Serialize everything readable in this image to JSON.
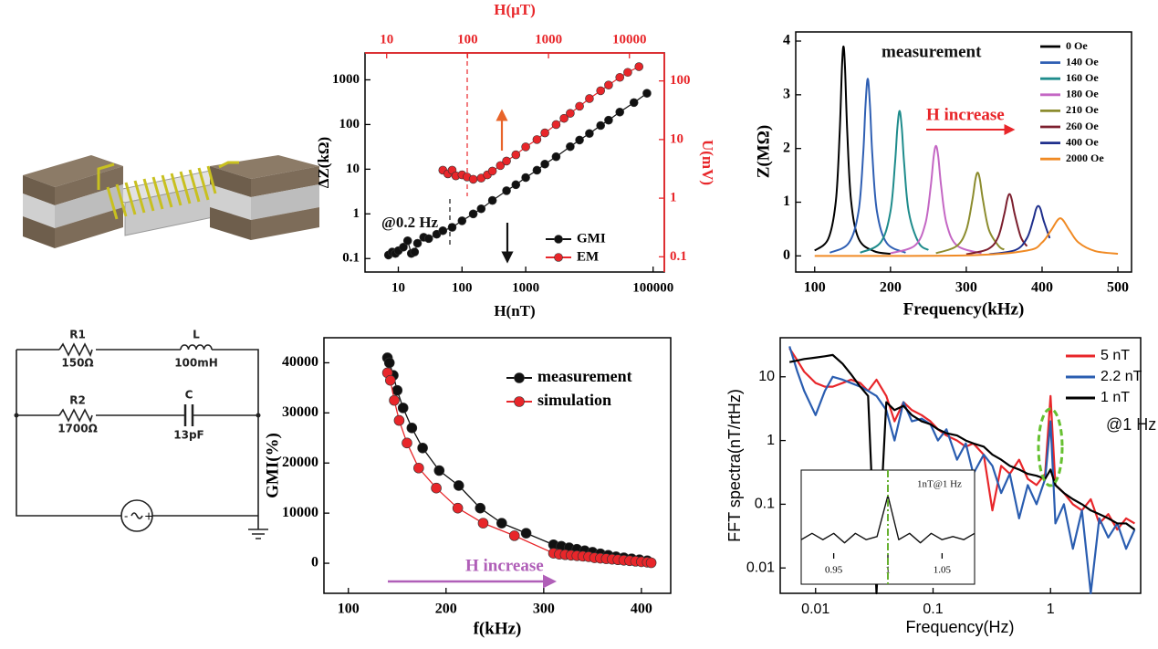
{
  "chart_data": [
    {
      "type": "line",
      "marker": "circle",
      "xscale": "log",
      "yscale": "log",
      "x2scale": "log",
      "y2scale": "log",
      "xlabel": "H(nT)",
      "ylabel": "ΔZ(kΩ)",
      "x2label": "H(μT)",
      "y2label": "U(mV)",
      "secondary_color": "#e8262a",
      "xlim": [
        3,
        150000
      ],
      "xticks": [
        10,
        100,
        1000,
        100000
      ],
      "x2lim": [
        5.4,
        27000
      ],
      "x2ticks": [
        10,
        100,
        1000,
        10000
      ],
      "ylim": [
        0.05,
        4000
      ],
      "yticks": [
        0.1,
        1,
        10,
        100,
        1000
      ],
      "y2lim": [
        0.055,
        300
      ],
      "y2ticks": [
        0.1,
        1,
        10,
        100
      ],
      "legend": "lower right",
      "annotations": [
        {
          "text": "@0.2 Hz",
          "color": "#111111"
        }
      ],
      "series": [
        {
          "name": "GMI",
          "color": "#111111",
          "x": [
            7,
            8,
            9,
            10,
            12,
            14,
            16,
            18,
            20,
            25,
            30,
            40,
            50,
            70,
            100,
            150,
            200,
            300,
            500,
            700,
            1000,
            1500,
            2000,
            3000,
            5000,
            7000,
            10000,
            15000,
            20000,
            30000,
            50000,
            80000
          ],
          "values": [
            0.12,
            0.14,
            0.13,
            0.15,
            0.18,
            0.25,
            0.13,
            0.14,
            0.22,
            0.3,
            0.28,
            0.35,
            0.42,
            0.5,
            0.7,
            1.0,
            1.3,
            2,
            3.3,
            4.5,
            6.5,
            9.5,
            13,
            19,
            32,
            45,
            63,
            95,
            125,
            190,
            310,
            500
          ]
        },
        {
          "name": "EM",
          "color": "#e8262a",
          "axis": "y2",
          "x": [
            50,
            60,
            70,
            80,
            100,
            120,
            150,
            200,
            250,
            300,
            400,
            500,
            700,
            1000,
            1500,
            2000,
            3000,
            4000,
            5000,
            7000,
            10000,
            15000,
            20000,
            30000,
            40000,
            60000
          ],
          "values": [
            3,
            2.6,
            3,
            2.4,
            2.5,
            2.3,
            2.1,
            2.2,
            2.5,
            2.9,
            3.6,
            4.3,
            5.5,
            7.5,
            10,
            13,
            18,
            23,
            28,
            37,
            50,
            68,
            85,
            115,
            140,
            175
          ]
        }
      ]
    },
    {
      "type": "line",
      "smooth": true,
      "xlabel": "Frequency(kHz)",
      "ylabel": "Z(MΩ)",
      "xlim": [
        75,
        518
      ],
      "xticks": [
        100,
        200,
        300,
        400,
        500
      ],
      "ylim": [
        -0.3,
        4.17
      ],
      "yticks": [
        0,
        1,
        2,
        3,
        4
      ],
      "legend": "upper right",
      "annotations": [
        {
          "text": "measurement",
          "color": "#111111"
        },
        {
          "text": "H increase",
          "color": "#e8262a"
        }
      ],
      "series": [
        {
          "name": "0 Oe",
          "color": "#000000",
          "x": [
            100,
            118,
            128,
            133,
            136,
            138,
            140,
            143,
            148,
            158,
            178,
            200
          ],
          "values": [
            0.1,
            0.32,
            1.03,
            2.3,
            3.51,
            3.9,
            3.51,
            2.3,
            1.03,
            0.32,
            0.09,
            0.04
          ]
        },
        {
          "name": "140 Oe",
          "color": "#2f5fb3",
          "x": [
            120,
            145,
            158,
            164,
            167,
            170,
            173,
            176,
            182,
            195,
            220
          ],
          "values": [
            0.06,
            0.24,
            0.84,
            1.9,
            2.79,
            3.3,
            2.79,
            1.9,
            0.84,
            0.24,
            0.06
          ]
        },
        {
          "name": "160 Oe",
          "color": "#1f8c8c",
          "x": [
            160,
            187,
            200,
            206,
            209,
            212,
            215,
            218,
            224,
            237,
            250
          ],
          "values": [
            0.06,
            0.25,
            0.83,
            1.73,
            2.37,
            2.7,
            2.37,
            1.73,
            0.83,
            0.25,
            0.11
          ]
        },
        {
          "name": "180 Oe",
          "color": "#c467c4",
          "x": [
            200,
            232,
            246,
            253,
            257,
            260,
            263,
            267,
            274,
            288,
            320
          ],
          "values": [
            0.05,
            0.19,
            0.6,
            1.28,
            1.85,
            2.05,
            1.85,
            1.28,
            0.6,
            0.19,
            0.05
          ]
        },
        {
          "name": "210 Oe",
          "color": "#8c8c2e",
          "x": [
            260,
            287,
            300,
            308,
            312,
            315,
            318,
            322,
            330,
            343,
            350
          ],
          "values": [
            0.05,
            0.18,
            0.48,
            1.04,
            1.42,
            1.55,
            1.42,
            1.04,
            0.48,
            0.18,
            0.12
          ]
        },
        {
          "name": "260 Oe",
          "color": "#7c1f2e",
          "x": [
            300,
            329,
            342,
            350,
            354,
            357,
            360,
            364,
            372,
            380
          ],
          "values": [
            0.03,
            0.13,
            0.35,
            0.77,
            1.05,
            1.15,
            1.05,
            0.77,
            0.35,
            0.18
          ]
        },
        {
          "name": "400 Oe",
          "color": "#1f2f8c",
          "x": [
            330,
            365,
            380,
            388,
            392,
            395,
            398,
            402,
            410
          ],
          "values": [
            0.03,
            0.11,
            0.33,
            0.66,
            0.87,
            0.93,
            0.87,
            0.66,
            0.33
          ]
        },
        {
          "name": "2000 Oe",
          "color": "#f08a24",
          "x": [
            100,
            300,
            380,
            400,
            412,
            424,
            436,
            448,
            470,
            500
          ],
          "values": [
            0.0,
            0.01,
            0.1,
            0.25,
            0.48,
            0.7,
            0.48,
            0.25,
            0.09,
            0.04
          ]
        }
      ]
    },
    {
      "type": "line",
      "marker": "circle",
      "xlabel": "f(kHz)",
      "ylabel": "GMI(%)",
      "xlim": [
        75,
        430
      ],
      "xticks": [
        100,
        200,
        300,
        400
      ],
      "ylim": [
        -6000,
        45000
      ],
      "yticks": [
        0,
        10000,
        20000,
        30000,
        40000
      ],
      "legend": "upper right",
      "annotations": [
        {
          "text": "H increase",
          "color": "#b05fb8"
        }
      ],
      "series": [
        {
          "name": "measurement",
          "color": "#111111",
          "x": [
            140,
            142,
            146,
            150,
            156,
            165,
            176,
            193,
            213,
            235,
            257,
            282,
            310,
            318,
            326,
            334,
            342,
            350,
            358,
            366,
            374,
            382,
            390,
            398,
            406
          ],
          "values": [
            41000,
            40000,
            37500,
            34500,
            31000,
            27000,
            23000,
            18500,
            15500,
            11000,
            8000,
            6000,
            3700,
            3400,
            3100,
            2800,
            2500,
            2200,
            1900,
            1600,
            1300,
            1100,
            900,
            700,
            500
          ]
        },
        {
          "name": "simulation",
          "color": "#e8262a",
          "x": [
            140,
            143,
            147,
            152,
            160,
            172,
            190,
            212,
            238,
            270,
            310,
            316,
            322,
            328,
            334,
            340,
            346,
            352,
            358,
            364,
            370,
            376,
            382,
            388,
            394,
            400,
            406,
            410
          ],
          "values": [
            38000,
            36500,
            32500,
            28500,
            24000,
            19000,
            15000,
            11000,
            8000,
            5500,
            2000,
            1800,
            1700,
            1600,
            1500,
            1400,
            1300,
            1100,
            1000,
            900,
            800,
            700,
            600,
            500,
            400,
            300,
            200,
            100
          ]
        }
      ]
    },
    {
      "type": "line",
      "xscale": "log",
      "yscale": "log",
      "xlabel": "Frequency(Hz)",
      "ylabel": "FFT spectra(nT/rtHz)",
      "xlim": [
        0.005,
        5.85
      ],
      "xticks": [
        0.01,
        0.1,
        1
      ],
      "ylim": [
        0.004,
        41
      ],
      "yticks": [
        0.01,
        0.1,
        1,
        10
      ],
      "legend": "upper right",
      "annotations": [
        {
          "text": "@1 Hz",
          "color": "#111111"
        }
      ],
      "x": [
        0.006,
        0.007,
        0.008,
        0.01,
        0.012,
        0.014,
        0.017,
        0.02,
        0.024,
        0.028,
        0.033,
        0.04,
        0.047,
        0.056,
        0.066,
        0.08,
        0.095,
        0.11,
        0.13,
        0.16,
        0.19,
        0.22,
        0.27,
        0.32,
        0.38,
        0.45,
        0.54,
        0.64,
        0.76,
        0.9,
        1,
        1.1,
        1.3,
        1.55,
        1.85,
        2.2,
        2.6,
        3.1,
        3.7,
        4.4,
        5.2
      ],
      "series": [
        {
          "name": "5 nT",
          "color": "#e8262a",
          "values": [
            28,
            18,
            12,
            8,
            7,
            7,
            8,
            9,
            8,
            6,
            9,
            5,
            2,
            4,
            3,
            2.5,
            2,
            1.5,
            1.2,
            1,
            0.8,
            0.9,
            0.6,
            0.08,
            0.4,
            0.3,
            0.5,
            0.25,
            0.2,
            0.3,
            5,
            0.2,
            0.15,
            0.1,
            0.08,
            0.12,
            0.05,
            0.07,
            0.04,
            0.06,
            0.05
          ]
        },
        {
          "name": "2.2 nT",
          "color": "#2a5db0",
          "values": [
            30,
            12,
            6,
            2.5,
            6,
            10,
            9,
            8,
            7,
            6,
            5,
            3,
            1,
            4,
            2,
            2.2,
            1.8,
            1,
            1.5,
            0.5,
            0.9,
            0.3,
            0.6,
            0.4,
            0.15,
            0.3,
            0.06,
            0.2,
            0.1,
            0.25,
            2,
            0.05,
            0.1,
            0.02,
            0.08,
            0.004,
            0.06,
            0.03,
            0.05,
            0.02,
            0.04
          ]
        },
        {
          "name": "1 nT",
          "color": "#000000",
          "values": [
            17,
            18,
            19,
            20,
            21,
            22,
            16,
            11,
            7,
            5,
            0.004,
            4,
            3,
            3.5,
            2.5,
            2,
            1.8,
            1.5,
            1.3,
            1.2,
            1,
            0.9,
            0.8,
            0.6,
            0.5,
            0.4,
            0.35,
            0.3,
            0.28,
            0.25,
            0.35,
            0.2,
            0.15,
            0.12,
            0.1,
            0.08,
            0.07,
            0.06,
            0.05,
            0.05,
            0.04
          ]
        }
      ]
    },
    {
      "type": "line",
      "xlim": [
        0.92,
        1.08
      ],
      "xticks": [
        0.95,
        1,
        1.05
      ],
      "ylim": [
        0,
        0.13
      ],
      "annotations": [
        {
          "text": "1nT@1 Hz",
          "color": "#111111"
        }
      ],
      "series": [
        {
          "color": "#111111",
          "x": [
            0.92,
            0.93,
            0.94,
            0.95,
            0.96,
            0.97,
            0.98,
            0.99,
            1,
            1.01,
            1.02,
            1.03,
            1.04,
            1.05,
            1.06,
            1.07,
            1.08
          ],
          "values": [
            0.03,
            0.04,
            0.03,
            0.04,
            0.025,
            0.04,
            0.03,
            0.035,
            0.1,
            0.03,
            0.04,
            0.025,
            0.04,
            0.03,
            0.035,
            0.03,
            0.04
          ]
        }
      ]
    }
  ],
  "circuit": {
    "components": [
      {
        "name": "R1",
        "value": "150Ω"
      },
      {
        "name": "L",
        "value": "100mH"
      },
      {
        "name": "R2",
        "value": "1700Ω"
      },
      {
        "name": "C",
        "value": "13pF"
      }
    ]
  }
}
